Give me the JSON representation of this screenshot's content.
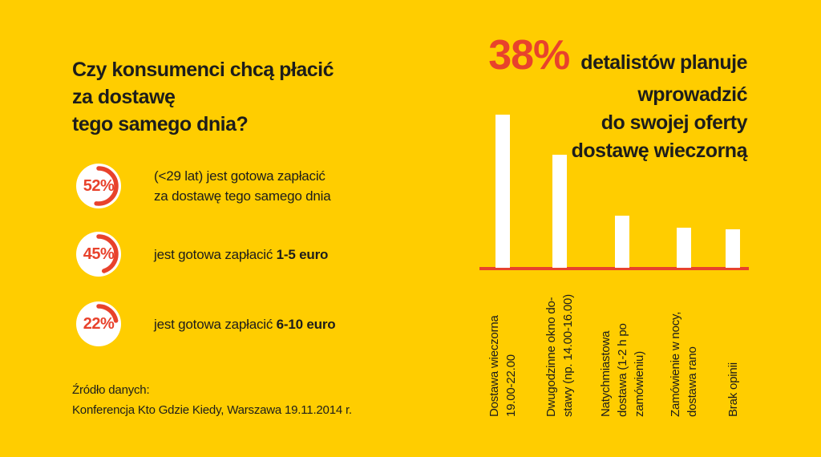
{
  "colors": {
    "background": "#ffcd00",
    "accent_red": "#e8422c",
    "text_black": "#1d1d1b",
    "bar_white": "#ffffff"
  },
  "left": {
    "question_title": "Czy konsumenci chcą płacić\nza dostawę\ntego samego dnia?",
    "stats": [
      {
        "value_label": "52%",
        "percent": 52,
        "text": "(<29 lat) jest gotowa zapłacić\nza dostawę tego samego dnia",
        "bold_text": ""
      },
      {
        "value_label": "45%",
        "percent": 45,
        "text": "jest gotowa zapłacić ",
        "bold_text": "1-5 euro"
      },
      {
        "value_label": "22%",
        "percent": 22,
        "text": "jest gotowa zapłacić ",
        "bold_text": "6-10 euro"
      }
    ],
    "source_label": "Źródło danych:",
    "source_text": "Konferencja Kto Gdzie Kiedy, Warszawa 19.11.2014 r."
  },
  "right": {
    "headline_percent": "38%",
    "headline_line1": "detalistów planuje",
    "headline_rest": "wprowadzić\ndo swojej oferty\ndostawę wieczorną"
  },
  "chart_data": {
    "type": "bar",
    "title": "38% detalistów planuje wprowadzić do swojej oferty dostawę wieczorną",
    "categories": [
      "Dostawa wieczorna 19.00-22.00",
      "Dwugodzinne okno dostawy (np. 14.00-16.00)",
      "Natychmiastowa dostawa (1-2 h po zamówieniu)",
      "Zamówienie w nocy, dostawa rano",
      "Brak opinii"
    ],
    "category_label_lines": [
      [
        "Dostawa wieczorna",
        "19.00-22.00"
      ],
      [
        "Dwugodzinne okno do-",
        "stawy (np. 14.00-16.00)"
      ],
      [
        "Natychmiastowa",
        "dostawa (1-2 h po",
        "zamówieniu)"
      ],
      [
        "Zamówienie w nocy,",
        "dostawa rano"
      ],
      [
        "Brak opinii"
      ]
    ],
    "values": [
      38,
      28,
      13,
      10,
      9.5
    ],
    "unit": "%",
    "ylabel": "",
    "xlabel": "",
    "ylim": [
      0,
      40
    ],
    "grid": false,
    "legend": false,
    "bar_color": "#ffffff",
    "axis_color": "#e8422c",
    "orientation": "vertical"
  }
}
